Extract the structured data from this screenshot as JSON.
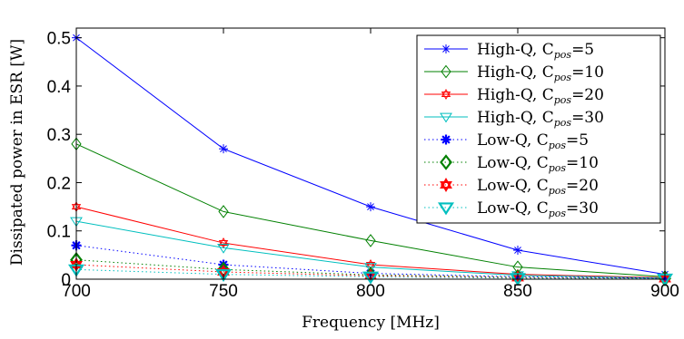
{
  "chart_data": {
    "type": "line",
    "xlabel": "Frequency [MHz]",
    "ylabel": "Dissipated power in ESR [W]",
    "xlim": [
      700,
      900
    ],
    "ylim": [
      0,
      0.52
    ],
    "x": [
      700,
      750,
      800,
      850,
      900
    ],
    "xticks": [
      "700",
      "750",
      "800",
      "850",
      "900"
    ],
    "yticks": [
      "0",
      "0.1",
      "0.2",
      "0.3",
      "0.4",
      "0.5"
    ],
    "grid": false,
    "legend_position": "top-right",
    "series": [
      {
        "name": "High-Q, C",
        "sub": "pos",
        "eq": "=5",
        "color": "#0000ff",
        "dash": "solid",
        "marker": "asterisk",
        "values": [
          0.5,
          0.27,
          0.15,
          0.06,
          0.01
        ]
      },
      {
        "name": "High-Q, C",
        "sub": "pos",
        "eq": "=10",
        "color": "#008000",
        "dash": "solid",
        "marker": "diamond",
        "values": [
          0.28,
          0.14,
          0.08,
          0.025,
          0.005
        ]
      },
      {
        "name": "High-Q, C",
        "sub": "pos",
        "eq": "=20",
        "color": "#ff0000",
        "dash": "solid",
        "marker": "hexagram",
        "values": [
          0.15,
          0.075,
          0.03,
          0.01,
          0.003
        ]
      },
      {
        "name": "High-Q, C",
        "sub": "pos",
        "eq": "=30",
        "color": "#00bfbf",
        "dash": "solid",
        "marker": "triangle",
        "values": [
          0.12,
          0.065,
          0.025,
          0.008,
          0.002
        ]
      },
      {
        "name": "Low-Q, C",
        "sub": "pos",
        "eq": "=5",
        "color": "#0000ff",
        "dash": "dotted",
        "marker": "asterisk",
        "values": [
          0.07,
          0.03,
          0.012,
          0.005,
          0.002
        ]
      },
      {
        "name": "Low-Q, C",
        "sub": "pos",
        "eq": "=10",
        "color": "#008000",
        "dash": "dotted",
        "marker": "diamond",
        "values": [
          0.04,
          0.02,
          0.009,
          0.004,
          0.0015
        ]
      },
      {
        "name": "Low-Q, C",
        "sub": "pos",
        "eq": "=20",
        "color": "#ff0000",
        "dash": "dotted",
        "marker": "hexagram",
        "values": [
          0.03,
          0.015,
          0.007,
          0.003,
          0.001
        ]
      },
      {
        "name": "Low-Q, C",
        "sub": "pos",
        "eq": "=30",
        "color": "#00bfbf",
        "dash": "dotted",
        "marker": "triangle",
        "values": [
          0.02,
          0.01,
          0.005,
          0.002,
          0.001
        ]
      }
    ]
  }
}
